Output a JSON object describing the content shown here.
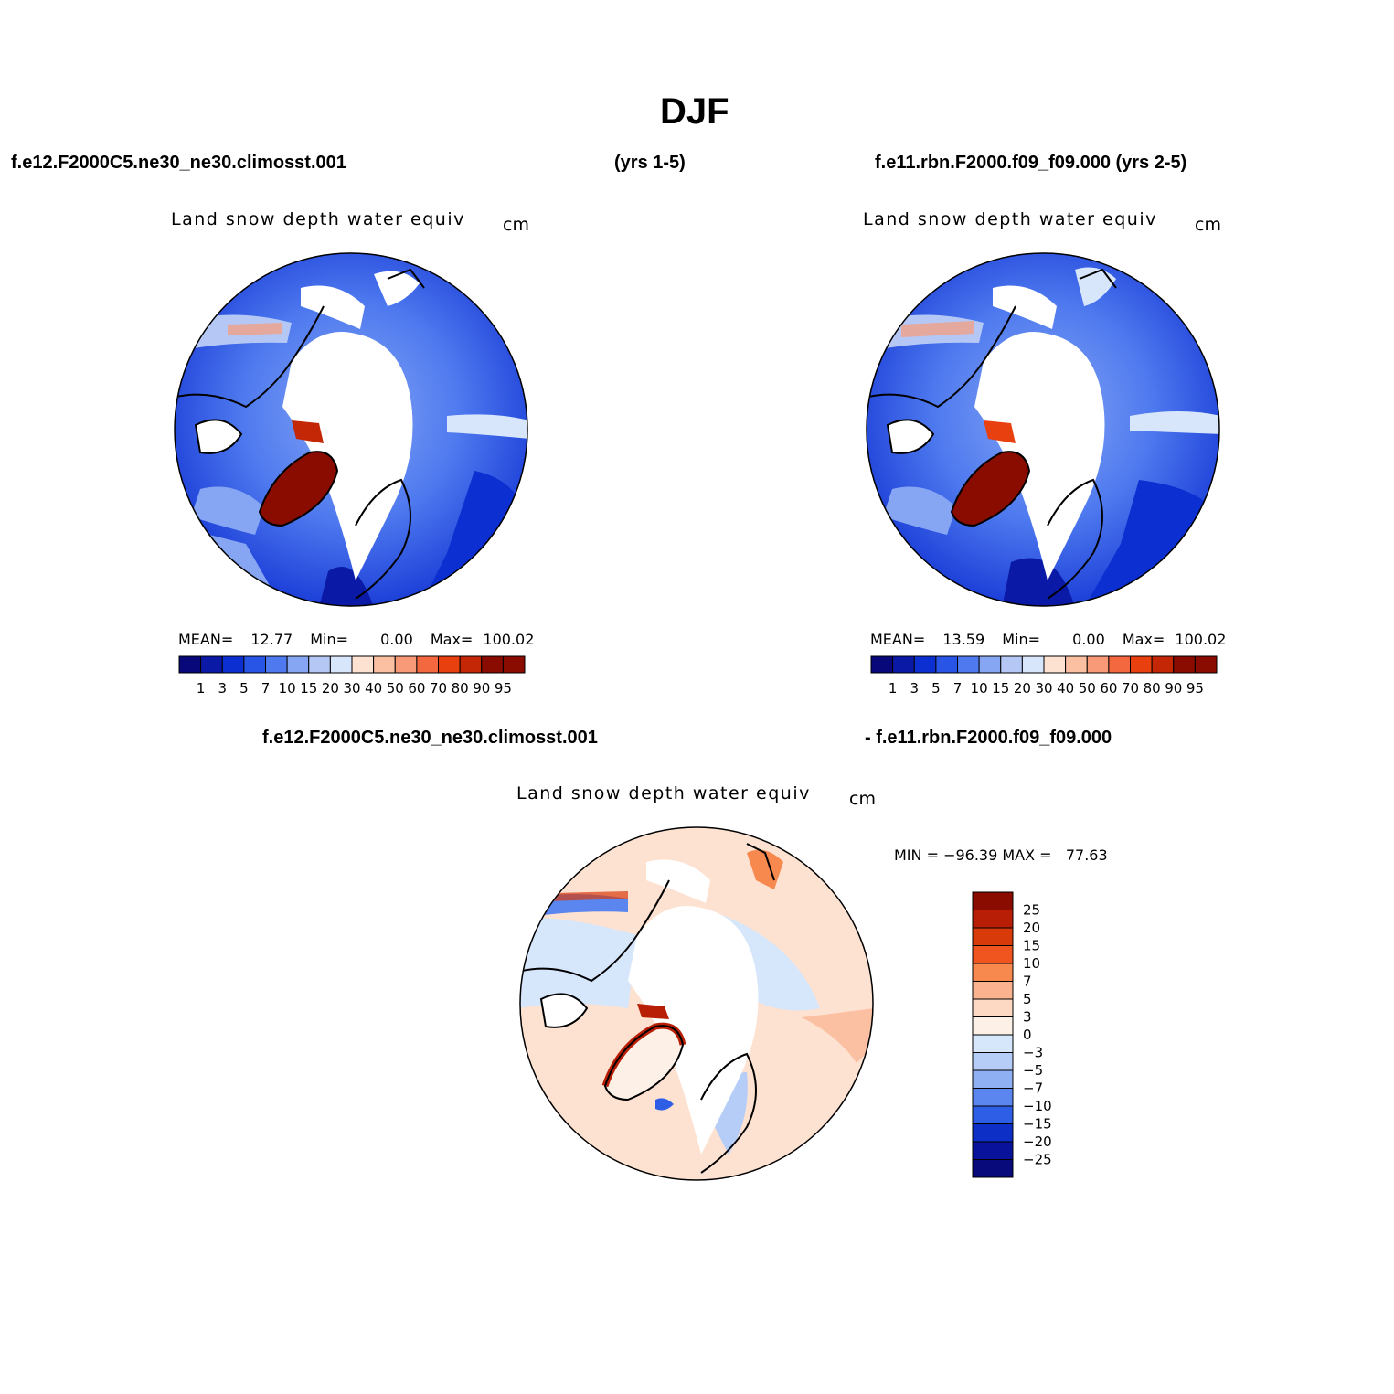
{
  "figure": {
    "title": "DJF",
    "case1_label": "f.e12.F2000C5.ne30_ne30.climosst.001",
    "case1_years": "(yrs 1-5)",
    "case2_label": "f.e11.rbn.F2000.f09_f09.000 (yrs 2-5)",
    "diff_label_left": "f.e12.F2000C5.ne30_ne30.climosst.001",
    "diff_label_right": "- f.e11.rbn.F2000.f09_f09.000"
  },
  "panels": [
    {
      "title": "Land snow depth water equiv",
      "units": "cm",
      "stats": {
        "mean_label": "MEAN=",
        "mean": "12.77",
        "min_label": "Min=",
        "min": "0.00",
        "max_label": "Max=",
        "max": "100.02"
      }
    },
    {
      "title": "Land snow depth water equiv",
      "units": "cm",
      "stats": {
        "mean_label": "MEAN=",
        "mean": "13.59",
        "min_label": "Min=",
        "min": "0.00",
        "max_label": "Max=",
        "max": "100.02"
      }
    },
    {
      "title": "Land snow depth water equiv",
      "units": "cm",
      "stats": {
        "text": "MIN = −96.39 MAX =   77.63"
      }
    }
  ],
  "colorbar_abs": {
    "labels": [
      "1",
      "3",
      "5",
      "7",
      "10",
      "15",
      "20",
      "30",
      "40",
      "50",
      "60",
      "70",
      "80",
      "90",
      "95"
    ],
    "colors": [
      "#08087a",
      "#0a1aa6",
      "#0b2fd0",
      "#2855e6",
      "#4f7aef",
      "#86a6f4",
      "#b5c8f5",
      "#d8e6fb",
      "#fde2d2",
      "#fbbfa2",
      "#f89a78",
      "#f3683f",
      "#e8400f",
      "#c42705",
      "#8a0c00"
    ]
  },
  "colorbar_diff": {
    "labels": [
      "25",
      "20",
      "15",
      "10",
      "7",
      "5",
      "3",
      "0",
      "−3",
      "−5",
      "−7",
      "−10",
      "−15",
      "−20",
      "−25"
    ],
    "colors": [
      "#8a0c00",
      "#b81e05",
      "#d93a0a",
      "#f05520",
      "#f7894f",
      "#fbb38f",
      "#fdd8c2",
      "#fdf0e6",
      "#d6e6fb",
      "#b6cdf7",
      "#8fb1f4",
      "#5b86ef",
      "#2f5ee6",
      "#0d2fc6",
      "#08129a",
      "#080a7c"
    ]
  }
}
